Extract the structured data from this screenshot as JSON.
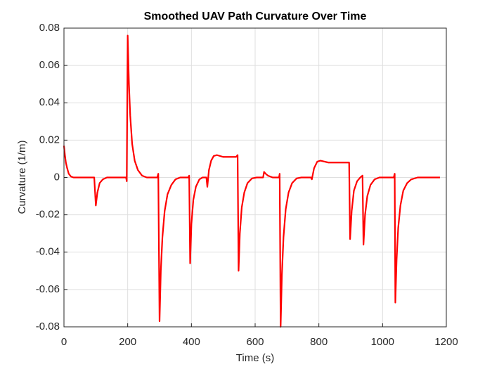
{
  "chart_data": {
    "type": "line",
    "title": "Smoothed UAV Path Curvature Over Time",
    "xlabel": "Time (s)",
    "ylabel": "Curvature (1/m)",
    "x": [
      0,
      3,
      6,
      10,
      15,
      22,
      30,
      95,
      100,
      105,
      112,
      122,
      135,
      195,
      197,
      200,
      204,
      208,
      214,
      222,
      232,
      245,
      260,
      293,
      296,
      300,
      304,
      309,
      316,
      325,
      337,
      350,
      365,
      390,
      393,
      396,
      400,
      406,
      414,
      425,
      435,
      447,
      450,
      455,
      462,
      470,
      480,
      500,
      540,
      545,
      548,
      552,
      558,
      566,
      576,
      590,
      605,
      625,
      628,
      633,
      640,
      655,
      675,
      677,
      680,
      684,
      689,
      696,
      705,
      716,
      730,
      745,
      775,
      778,
      785,
      795,
      805,
      830,
      895,
      898,
      903,
      910,
      920,
      930,
      937,
      940,
      945,
      952,
      962,
      975,
      990,
      1035,
      1038,
      1040,
      1044,
      1049,
      1056,
      1065,
      1077,
      1090,
      1110,
      1180
    ],
    "series": [
      {
        "name": "Curvature",
        "color": "#ff0000",
        "values": [
          0.017,
          0.012,
          0.008,
          0.005,
          0.002,
          0.0005,
          0,
          0,
          -0.015,
          -0.008,
          -0.003,
          -0.001,
          0,
          0,
          -0.002,
          0.076,
          0.05,
          0.033,
          0.018,
          0.009,
          0.004,
          0.001,
          0,
          0,
          0.002,
          -0.077,
          -0.05,
          -0.032,
          -0.018,
          -0.009,
          -0.004,
          -0.001,
          0,
          0,
          0.001,
          -0.046,
          -0.025,
          -0.012,
          -0.005,
          -0.001,
          0,
          0,
          -0.005,
          0.004,
          0.009,
          0.0115,
          0.012,
          0.011,
          0.011,
          0.012,
          -0.05,
          -0.03,
          -0.016,
          -0.008,
          -0.003,
          -0.0005,
          0,
          0,
          0.003,
          0.002,
          0.001,
          0,
          0,
          0.002,
          -0.08,
          -0.052,
          -0.032,
          -0.017,
          -0.008,
          -0.003,
          -0.0005,
          0,
          0,
          -0.001,
          0.005,
          0.0085,
          0.009,
          0.008,
          0.008,
          -0.033,
          -0.018,
          -0.007,
          -0.002,
          0,
          0.001,
          -0.036,
          -0.02,
          -0.01,
          -0.004,
          -0.001,
          0,
          0,
          0.002,
          -0.067,
          -0.044,
          -0.027,
          -0.015,
          -0.007,
          -0.003,
          -0.001,
          0,
          0
        ]
      }
    ],
    "xlim": [
      0,
      1200
    ],
    "xticks": [
      0,
      200,
      400,
      600,
      800,
      1000,
      1200
    ],
    "ylim": [
      -0.08,
      0.08
    ],
    "yticks": [
      -0.08,
      -0.06,
      -0.04,
      -0.02,
      0,
      0.02,
      0.04,
      0.06,
      0.08
    ],
    "grid": true
  }
}
